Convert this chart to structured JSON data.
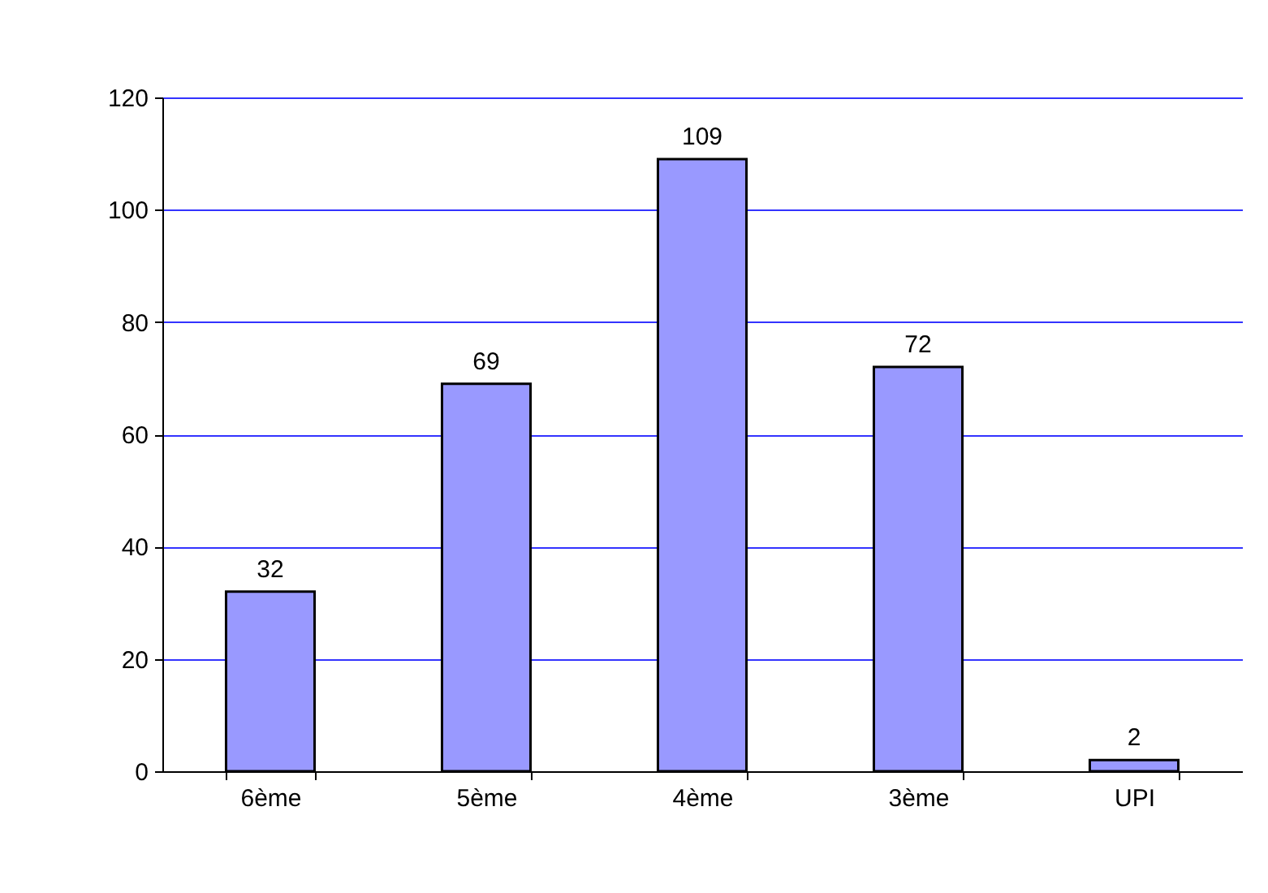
{
  "chart_data": {
    "type": "bar",
    "categories": [
      "6ème",
      "5ème",
      "4ème",
      "3ème",
      "UPI"
    ],
    "values": [
      32,
      69,
      109,
      72,
      2
    ],
    "color": "#9999ff",
    "ylim": [
      0,
      120
    ],
    "yticks": [
      0,
      20,
      40,
      60,
      80,
      100,
      120
    ],
    "grid": "y",
    "data_labels": true
  }
}
